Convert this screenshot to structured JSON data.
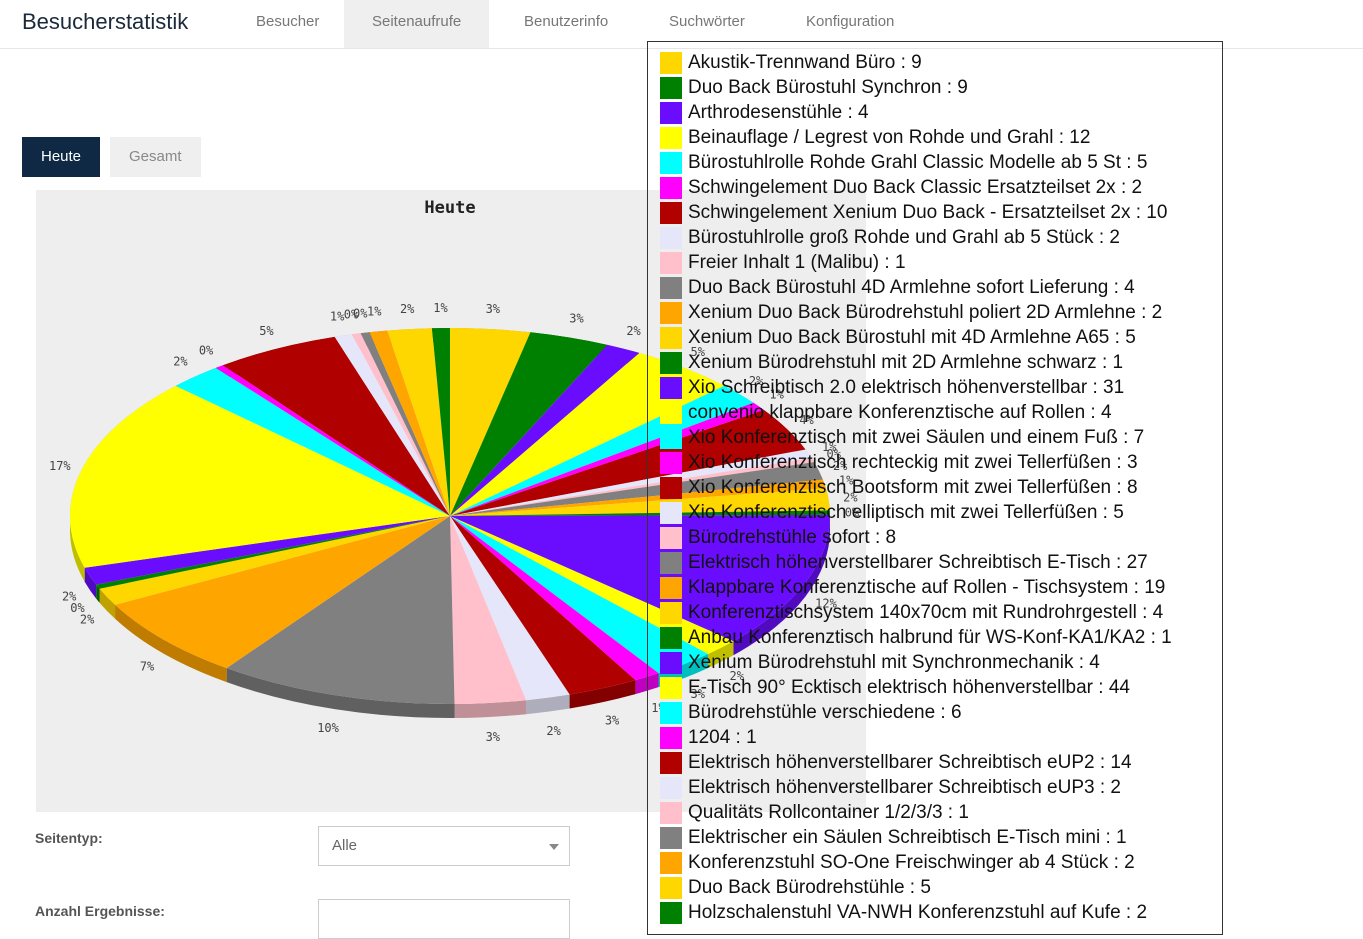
{
  "app": {
    "title": "Besucherstatistik"
  },
  "nav": {
    "tabs": [
      {
        "label": "Besucher"
      },
      {
        "label": "Seitenaufrufe"
      },
      {
        "label": "Benutzerinfo"
      },
      {
        "label": "Suchwörter"
      },
      {
        "label": "Konfiguration"
      }
    ],
    "active": "Seitenaufrufe"
  },
  "subtabs": [
    {
      "label": "Heute"
    },
    {
      "label": "Gesamt"
    }
  ],
  "form": {
    "page_type_label": "Seitentyp:",
    "page_type_value": "Alle",
    "result_count_label": "Anzahl Ergebnisse:",
    "result_count_value": ""
  },
  "chart_data": {
    "type": "pie",
    "title": "Heute",
    "slices": [
      {
        "label": "Akustik-Trennwand Büro",
        "value": 9,
        "color": "#ffd700"
      },
      {
        "label": "Duo Back Bürostuhl Synchron",
        "value": 9,
        "color": "#008000"
      },
      {
        "label": "Arthrodesenstühle",
        "value": 4,
        "color": "#6a0dff"
      },
      {
        "label": "Beinauflage / Legrest von Rohde und Grahl",
        "value": 12,
        "color": "#ffff00"
      },
      {
        "label": "Bürostuhlrolle Rohde Grahl Classic Modelle ab 5 St",
        "value": 5,
        "color": "#00ffff"
      },
      {
        "label": "Schwingelement Duo Back Classic Ersatzteilset 2x",
        "value": 2,
        "color": "#ff00ff"
      },
      {
        "label": "Schwingelement Xenium Duo Back - Ersatzteilset 2x",
        "value": 10,
        "color": "#b00000"
      },
      {
        "label": "Bürostuhlrolle groß Rohde und Grahl ab 5 Stück",
        "value": 2,
        "color": "#e6e6fa"
      },
      {
        "label": "Freier Inhalt 1 (Malibu)",
        "value": 1,
        "color": "#ffc0cb"
      },
      {
        "label": "Duo Back Bürostuhl 4D Armlehne sofort Lieferung",
        "value": 4,
        "color": "#808080"
      },
      {
        "label": "Xenium Duo Back Bürodrehstuhl poliert 2D Armlehne",
        "value": 2,
        "color": "#ffa500"
      },
      {
        "label": "Xenium Duo Back Bürostuhl mit 4D Armlehne A65",
        "value": 5,
        "color": "#ffd700"
      },
      {
        "label": "Xenium Bürodrehstuhl mit 2D Armlehne schwarz",
        "value": 1,
        "color": "#008000"
      },
      {
        "label": "Xio Schreibtisch 2.0 elektrisch höhenverstellbar",
        "value": 31,
        "color": "#6a0dff"
      },
      {
        "label": "convenio klappbare Konferenztische auf Rollen",
        "value": 4,
        "color": "#ffff00"
      },
      {
        "label": "Xio Konferenztisch mit zwei Säulen und einem Fuß",
        "value": 7,
        "color": "#00ffff"
      },
      {
        "label": "Xio Konferenztisch rechteckig mit zwei Tellerfüßen",
        "value": 3,
        "color": "#ff00ff"
      },
      {
        "label": "Xio Konferenztisch Bootsform mit zwei Tellerfüßen",
        "value": 8,
        "color": "#b00000"
      },
      {
        "label": "Xio Konferenztisch elliptisch mit zwei Tellerfüßen",
        "value": 5,
        "color": "#e6e6fa"
      },
      {
        "label": "Bürodrehstühle sofort",
        "value": 8,
        "color": "#ffc0cb"
      },
      {
        "label": "Elektrisch höhenverstellbarer Schreibtisch E-Tisch",
        "value": 27,
        "color": "#808080"
      },
      {
        "label": "Klappbare Konferenztische auf Rollen - Tischsystem",
        "value": 19,
        "color": "#ffa500"
      },
      {
        "label": "Konferenztischsystem 140x70cm mit Rundrohrgestell",
        "value": 4,
        "color": "#ffd700"
      },
      {
        "label": "Anbau Konferenztisch halbrund für WS-Konf-KA1/KA2",
        "value": 1,
        "color": "#008000"
      },
      {
        "label": "Xenium Bürodrehstuhl mit Synchronmechanik",
        "value": 4,
        "color": "#6a0dff"
      },
      {
        "label": "E-Tisch 90° Ecktisch elektrisch höhenverstellbar",
        "value": 44,
        "color": "#ffff00"
      },
      {
        "label": "Bürodrehstühle verschiedene",
        "value": 6,
        "color": "#00ffff"
      },
      {
        "label": "1204",
        "value": 1,
        "color": "#ff00ff"
      },
      {
        "label": "Elektrisch höhenverstellbarer Schreibtisch eUP2",
        "value": 14,
        "color": "#b00000"
      },
      {
        "label": "Elektrisch höhenverstellbarer Schreibtisch eUP3",
        "value": 2,
        "color": "#e6e6fa"
      },
      {
        "label": "Qualitäts Rollcontainer 1/2/3/3",
        "value": 1,
        "color": "#ffc0cb"
      },
      {
        "label": "Elektrischer ein Säulen Schreibtisch E-Tisch mini",
        "value": 1,
        "color": "#808080"
      },
      {
        "label": "Konferenzstuhl SO-One Freischwinger ab 4 Stück",
        "value": 2,
        "color": "#ffa500"
      },
      {
        "label": "Duo Back Bürodrehstühle",
        "value": 5,
        "color": "#ffd700"
      },
      {
        "label": "Holzschalenstuhl VA-NWH Konferenzstuhl auf Kufe",
        "value": 2,
        "color": "#008000"
      }
    ]
  }
}
